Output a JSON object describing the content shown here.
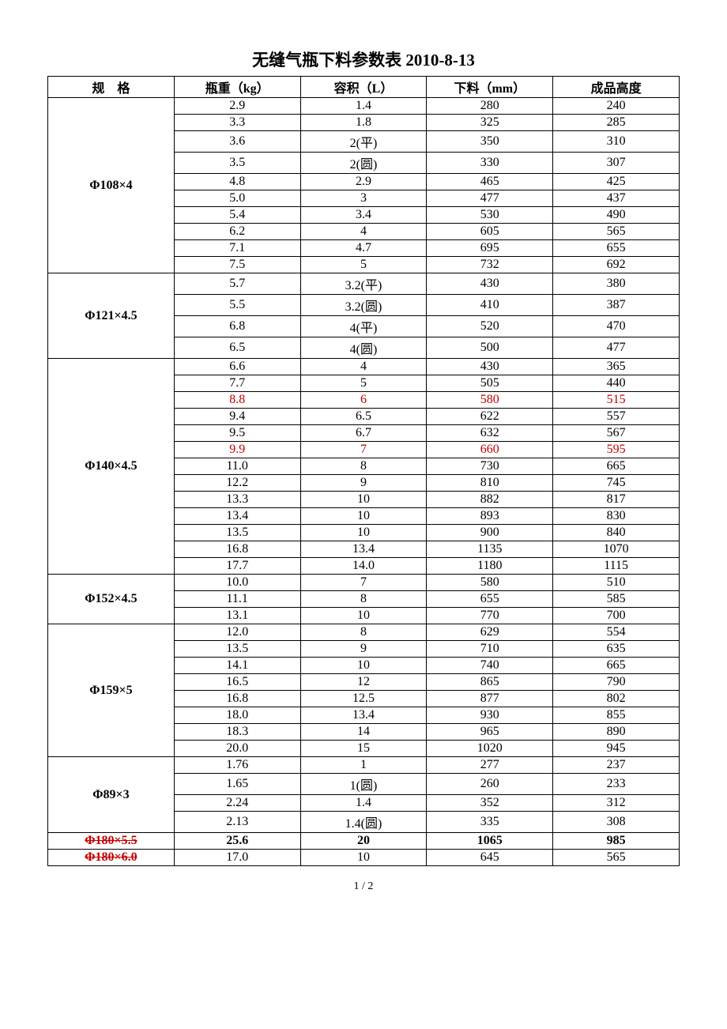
{
  "title": "无缝气瓶下料参数表 2010-8-13",
  "columns": [
    "规　格",
    "瓶重（kg）",
    "容积（L）",
    "下料（mm）",
    "成品高度"
  ],
  "footer": "1 / 2",
  "colors": {
    "red": "#c00000",
    "black": "#000000"
  },
  "groups": [
    {
      "spec": "Φ108×4",
      "rows": [
        {
          "w": "2.9",
          "v": "1.4",
          "c": "280",
          "h": "240"
        },
        {
          "w": "3.3",
          "v": "1.8",
          "c": "325",
          "h": "285"
        },
        {
          "w": "3.6",
          "v": "2(平)",
          "c": "350",
          "h": "310"
        },
        {
          "w": "3.5",
          "v": "2(圆)",
          "c": "330",
          "h": "307"
        },
        {
          "w": "4.8",
          "v": "2.9",
          "c": "465",
          "h": "425"
        },
        {
          "w": "5.0",
          "v": "3",
          "c": "477",
          "h": "437"
        },
        {
          "w": "5.4",
          "v": "3.4",
          "c": "530",
          "h": "490"
        },
        {
          "w": "6.2",
          "v": "4",
          "c": "605",
          "h": "565"
        },
        {
          "w": "7.1",
          "v": "4.7",
          "c": "695",
          "h": "655"
        },
        {
          "w": "7.5",
          "v": "5",
          "c": "732",
          "h": "692"
        }
      ]
    },
    {
      "spec": "Φ121×4.5",
      "rows": [
        {
          "w": "5.7",
          "v": "3.2(平)",
          "c": "430",
          "h": "380"
        },
        {
          "w": "5.5",
          "v": "3.2(圆)",
          "c": "410",
          "h": "387"
        },
        {
          "w": "6.8",
          "v": "4(平)",
          "c": "520",
          "h": "470"
        },
        {
          "w": "6.5",
          "v": "4(圆)",
          "c": "500",
          "h": "477"
        }
      ]
    },
    {
      "spec": "Φ140×4.5",
      "rows": [
        {
          "w": "6.6",
          "v": "4",
          "c": "430",
          "h": "365"
        },
        {
          "w": "7.7",
          "v": "5",
          "c": "505",
          "h": "440"
        },
        {
          "w": "8.8",
          "v": "6",
          "c": "580",
          "h": "515",
          "color": "red"
        },
        {
          "w": "9.4",
          "v": "6.5",
          "c": "622",
          "h": "557"
        },
        {
          "w": "9.5",
          "v": "6.7",
          "c": "632",
          "h": "567"
        },
        {
          "w": "9.9",
          "v": "7",
          "c": "660",
          "h": "595",
          "color": "red"
        },
        {
          "w": "11.0",
          "v": "8",
          "c": "730",
          "h": "665"
        },
        {
          "w": "12.2",
          "v": "9",
          "c": "810",
          "h": "745"
        },
        {
          "w": "13.3",
          "v": "10",
          "c": "882",
          "h": "817"
        },
        {
          "w": "13.4",
          "v": "10",
          "c": "893",
          "h": "830"
        },
        {
          "w": "13.5",
          "v": "10",
          "c": "900",
          "h": "840"
        },
        {
          "w": "16.8",
          "v": "13.4",
          "c": "1135",
          "h": "1070"
        },
        {
          "w": "17.7",
          "v": "14.0",
          "c": "1180",
          "h": "1115"
        }
      ]
    },
    {
      "spec": "Φ152×4.5",
      "rows": [
        {
          "w": "10.0",
          "v": "7",
          "c": "580",
          "h": "510"
        },
        {
          "w": "11.1",
          "v": "8",
          "c": "655",
          "h": "585"
        },
        {
          "w": "13.1",
          "v": "10",
          "c": "770",
          "h": "700"
        }
      ]
    },
    {
      "spec": "Φ159×5",
      "rows": [
        {
          "w": "12.0",
          "v": "8",
          "c": "629",
          "h": "554"
        },
        {
          "w": "13.5",
          "v": "9",
          "c": "710",
          "h": "635"
        },
        {
          "w": "14.1",
          "v": "10",
          "c": "740",
          "h": "665"
        },
        {
          "w": "16.5",
          "v": "12",
          "c": "865",
          "h": "790"
        },
        {
          "w": "16.8",
          "v": "12.5",
          "c": "877",
          "h": "802"
        },
        {
          "w": "18.0",
          "v": "13.4",
          "c": "930",
          "h": "855"
        },
        {
          "w": "18.3",
          "v": "14",
          "c": "965",
          "h": "890"
        },
        {
          "w": "20.0",
          "v": "15",
          "c": "1020",
          "h": "945"
        }
      ]
    },
    {
      "spec": "Φ89×3",
      "rows": [
        {
          "w": "1.76",
          "v": "1",
          "c": "277",
          "h": "237"
        },
        {
          "w": "1.65",
          "v": "1(圆)",
          "c": "260",
          "h": "233"
        },
        {
          "w": "2.24",
          "v": "1.4",
          "c": "352",
          "h": "312"
        },
        {
          "w": "2.13",
          "v": "1.4(圆)",
          "c": "335",
          "h": "308"
        }
      ]
    },
    {
      "spec": "Φ180×5.5",
      "spec_strike": true,
      "rows": [
        {
          "w": "25.6",
          "v": "20",
          "c": "1065",
          "h": "985",
          "bold": true
        }
      ]
    },
    {
      "spec": "Φ180×6.0",
      "spec_strike": true,
      "rows": [
        {
          "w": "17.0",
          "v": "10",
          "c": "645",
          "h": "565"
        }
      ]
    }
  ]
}
